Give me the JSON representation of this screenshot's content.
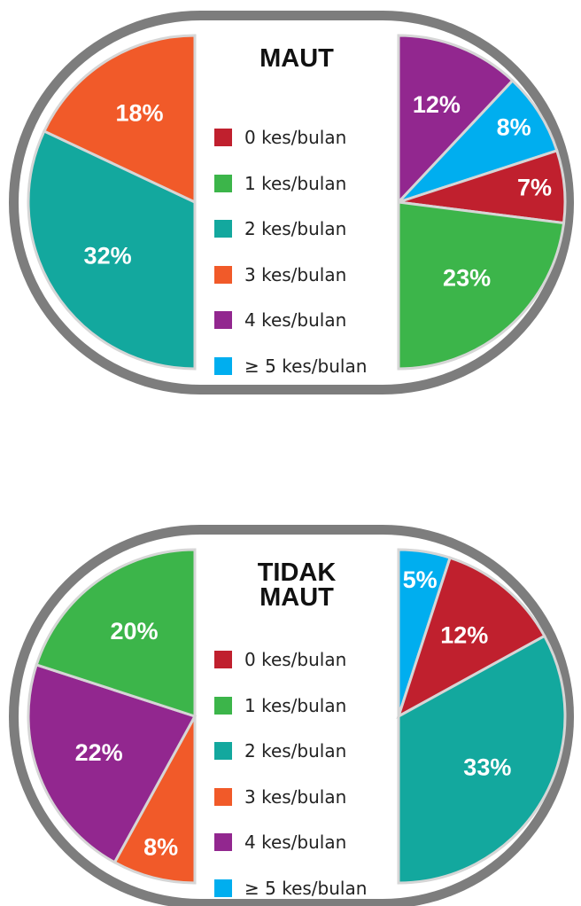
{
  "chart_data": [
    {
      "type": "pie",
      "title": "MAUT",
      "categories": [
        "0 kes/bulan",
        "1 kes/bulan",
        "2 kes/bulan",
        "3 kes/bulan",
        "4 kes/bulan",
        "≥ 5 kes/bulan"
      ],
      "values": [
        7,
        23,
        32,
        18,
        12,
        8
      ],
      "value_labels": [
        "7%",
        "23%",
        "32%",
        "18%",
        "12%",
        "8%"
      ],
      "colors": [
        "#c0202e",
        "#3cb54a",
        "#13a89e",
        "#f15a29",
        "#92278f",
        "#00aeef"
      ],
      "order": [
        4,
        5,
        0,
        1,
        2,
        3
      ]
    },
    {
      "type": "pie",
      "title": "TIDAK MAUT",
      "categories": [
        "0 kes/bulan",
        "1 kes/bulan",
        "2 kes/bulan",
        "3 kes/bulan",
        "4 kes/bulan",
        "≥ 5 kes/bulan"
      ],
      "values": [
        12,
        20,
        33,
        8,
        22,
        5
      ],
      "value_labels": [
        "12%",
        "20%",
        "33%",
        "8%",
        "22%",
        "5%"
      ],
      "colors": [
        "#c0202e",
        "#3cb54a",
        "#13a89e",
        "#f15a29",
        "#92278f",
        "#00aeef"
      ],
      "order": [
        5,
        0,
        2,
        3,
        4,
        1
      ]
    }
  ]
}
